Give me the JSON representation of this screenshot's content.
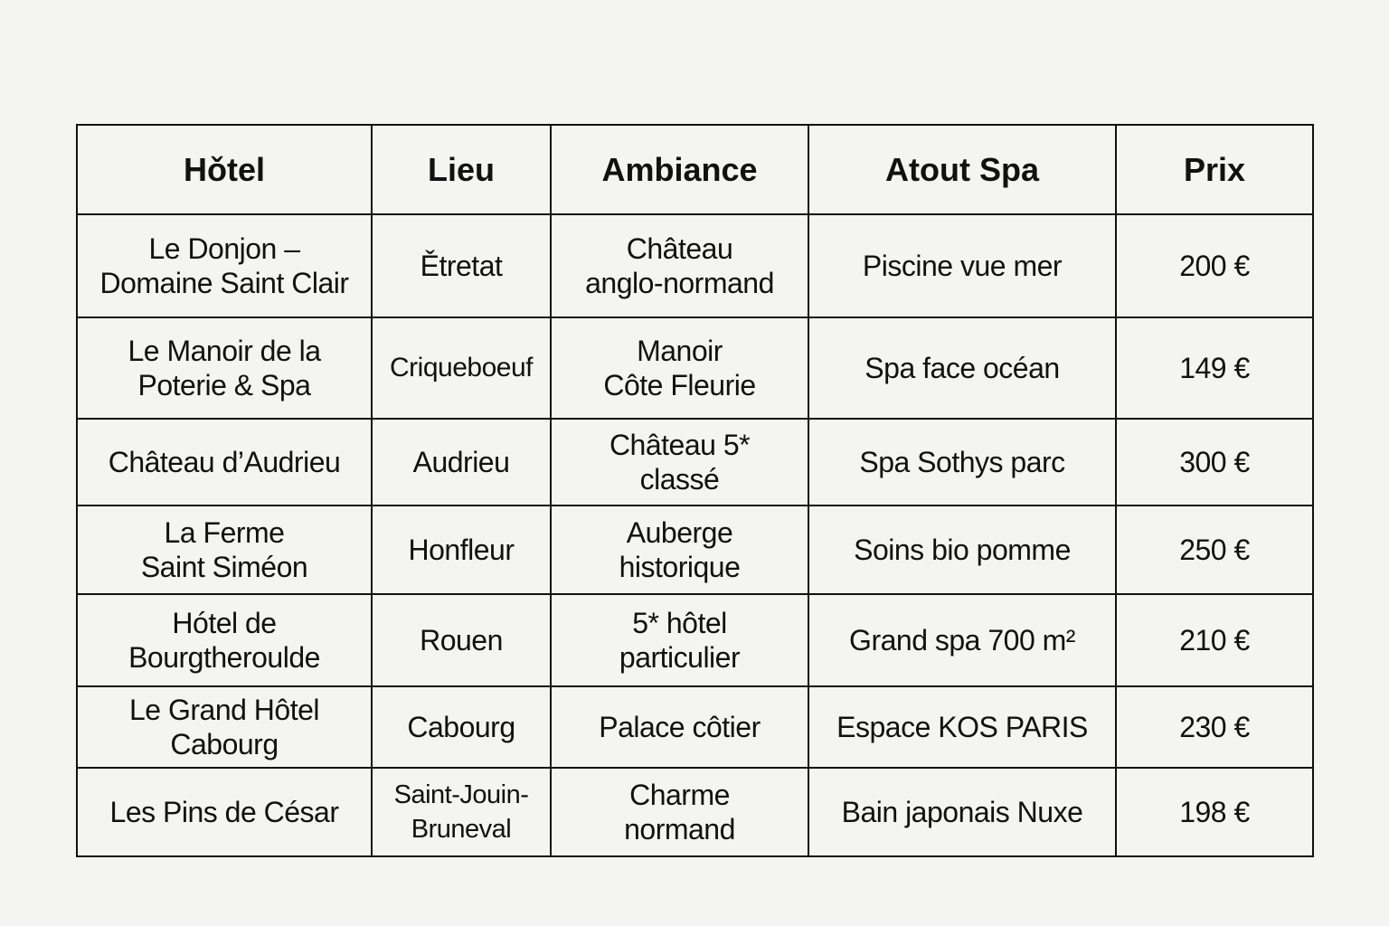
{
  "table": {
    "headers": [
      "Hǒtel",
      "Lieu",
      "Ambiance",
      "Atout Spa",
      "Prix"
    ],
    "rows": [
      [
        "Le Donjon –\nDomaine Saint Clair",
        "Ětretat",
        "Château\nanglo-normand",
        "Piscine vue mer",
        "200 €"
      ],
      [
        "Le Manoir de la\nPoterie & Spa",
        "Criqueboeuf",
        "Manoir\nCôte Fleurie",
        "Spa face océan",
        "149 €"
      ],
      [
        "Château d’Audrieu",
        "Audrieu",
        "Château 5*\nclassé",
        "Spa Sothys parc",
        "300 €"
      ],
      [
        "La Ferme\nSaint Siméon",
        "Honfleur",
        "Auberge\nhistorique",
        "Soins bio pomme",
        "250 €"
      ],
      [
        "Hótel de\nBourgtheroulde",
        "Rouen",
        "5* hôtel\nparticulier",
        "Grand spa 700 m²",
        "210 €"
      ],
      [
        "Le Grand Hôtel\nCabourg",
        "Cabourg",
        "Palace côtier",
        "Espace KOS PARIS",
        "230 €"
      ],
      [
        "Les Pins de César",
        "Saint-Jouin-\nBruneval",
        "Charme\nnormand",
        "Bain japonais Nuxe",
        "198 €"
      ]
    ]
  }
}
